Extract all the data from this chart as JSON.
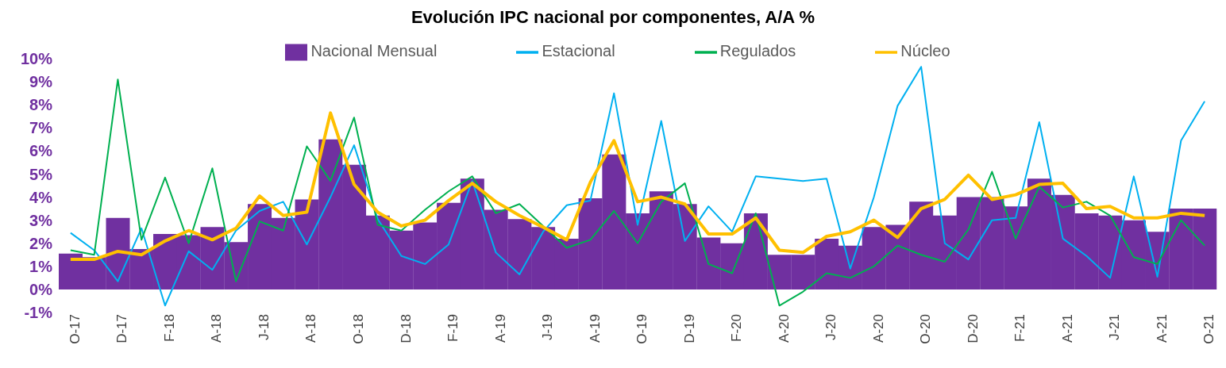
{
  "chart_data": {
    "type": "bar",
    "title": "Evolución IPC nacional por componentes, A/A %",
    "categories": [
      "O-17",
      null,
      "D-17",
      null,
      "F-18",
      null,
      "A-18",
      null,
      "J-18",
      null,
      "A-18",
      null,
      "O-18",
      null,
      "D-18",
      null,
      "F-19",
      null,
      "A-19",
      null,
      "J-19",
      null,
      "A-19",
      null,
      "O-19",
      null,
      "D-19",
      null,
      "F-20",
      null,
      "A-20",
      null,
      "J-20",
      null,
      "A-20",
      null,
      "O-20",
      null,
      "D-20",
      null,
      "F-21",
      null,
      "A-21",
      null,
      "J-21",
      null,
      "A-21",
      null,
      "O-21"
    ],
    "series": [
      {
        "name": "Nacional Mensual",
        "color": "#7030a0",
        "values": [
          1.55,
          1.4,
          3.1,
          1.75,
          2.4,
          2.35,
          2.7,
          2.05,
          3.7,
          3.1,
          3.9,
          6.5,
          5.4,
          3.2,
          2.55,
          2.9,
          3.75,
          4.8,
          3.45,
          3.05,
          2.7,
          2.2,
          3.95,
          5.85,
          3.3,
          4.25,
          3.7,
          2.25,
          2.0,
          3.3,
          1.5,
          1.5,
          2.2,
          1.9,
          2.7,
          2.8,
          3.8,
          3.2,
          4.0,
          4.0,
          3.6,
          4.8,
          4.1,
          3.3,
          3.2,
          3.0,
          2.5,
          3.5,
          3.5
        ]
      },
      {
        "name": "Estacional",
        "type": "line",
        "color": "#00b0f0",
        "values": [
          2.45,
          1.7,
          0.35,
          2.65,
          -0.7,
          1.65,
          0.85,
          2.55,
          3.4,
          3.8,
          1.95,
          4.0,
          6.25,
          3.05,
          1.45,
          1.1,
          1.95,
          4.7,
          1.6,
          0.65,
          2.5,
          3.65,
          3.85,
          8.5,
          2.8,
          7.3,
          2.1,
          3.6,
          2.5,
          4.9,
          4.8,
          4.7,
          4.8,
          0.9,
          4.0,
          7.95,
          9.65,
          2.0,
          1.3,
          3.0,
          3.1,
          7.25,
          2.2,
          1.45,
          0.5,
          4.9,
          0.55,
          6.45,
          8.15
        ]
      },
      {
        "name": "Regulados",
        "type": "line",
        "color": "#00b050",
        "values": [
          1.7,
          1.5,
          9.1,
          2.15,
          4.85,
          2.0,
          5.25,
          0.35,
          2.95,
          2.55,
          6.2,
          4.7,
          7.45,
          2.8,
          2.55,
          3.45,
          4.25,
          4.9,
          3.3,
          3.7,
          2.75,
          1.8,
          2.15,
          3.4,
          2.0,
          3.8,
          4.6,
          1.1,
          0.7,
          3.3,
          -0.7,
          -0.1,
          0.7,
          0.5,
          1.0,
          1.9,
          1.5,
          1.2,
          2.6,
          5.1,
          2.2,
          4.45,
          3.55,
          3.8,
          3.2,
          1.4,
          1.1,
          3.0,
          1.9
        ]
      },
      {
        "name": "Núcleo",
        "type": "line",
        "color": "#ffc000",
        "values": [
          1.3,
          1.3,
          1.65,
          1.5,
          2.1,
          2.55,
          2.15,
          2.65,
          4.05,
          3.2,
          3.35,
          7.65,
          4.55,
          3.35,
          2.75,
          3.0,
          3.85,
          4.6,
          3.8,
          3.2,
          2.7,
          2.15,
          4.65,
          6.45,
          3.8,
          4.0,
          3.7,
          2.4,
          2.4,
          3.1,
          1.7,
          1.6,
          2.3,
          2.5,
          3.0,
          2.25,
          3.5,
          3.9,
          4.95,
          3.9,
          4.1,
          4.55,
          4.6,
          3.5,
          3.6,
          3.1,
          3.1,
          3.3,
          3.2
        ]
      }
    ],
    "ylim": [
      -1,
      10
    ],
    "yticks": [
      {
        "value": -1,
        "label": "-1%"
      },
      {
        "value": 0,
        "label": "0%"
      },
      {
        "value": 1,
        "label": "1%"
      },
      {
        "value": 2,
        "label": "2%"
      },
      {
        "value": 3,
        "label": "3%"
      },
      {
        "value": 4,
        "label": "4%"
      },
      {
        "value": 5,
        "label": "5%"
      },
      {
        "value": 6,
        "label": "6%"
      },
      {
        "value": 7,
        "label": "7%"
      },
      {
        "value": 8,
        "label": "8%"
      },
      {
        "value": 9,
        "label": "9%"
      },
      {
        "value": 10,
        "label": "10%"
      }
    ],
    "legend": "top",
    "marker": "none"
  }
}
